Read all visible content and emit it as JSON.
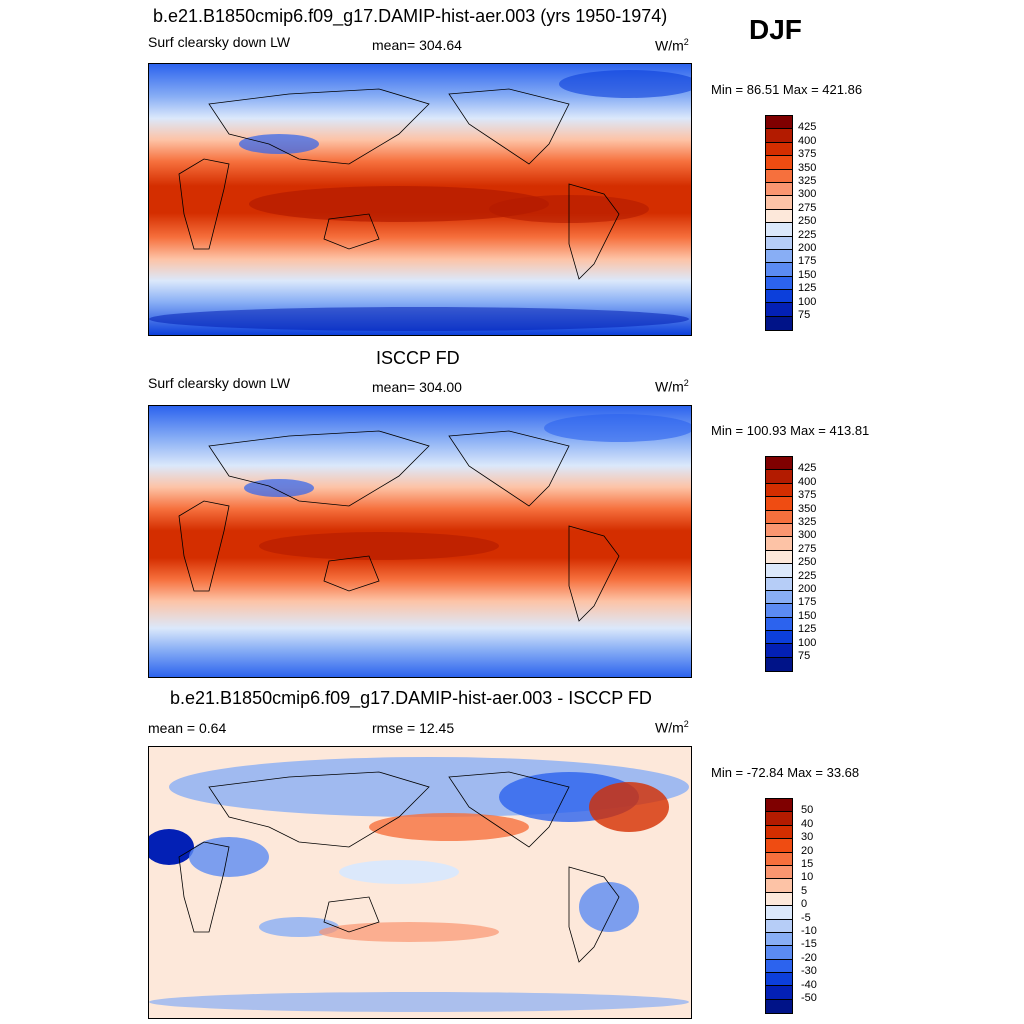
{
  "season": "DJF",
  "panels": [
    {
      "title": "b.e21.B1850cmip6.f09_g17.DAMIP-hist-aer.003 (yrs 1950-1974)",
      "left": "Surf clearsky down LW",
      "center": "mean= 304.64",
      "units": "W/m",
      "units_sup": "2",
      "minmax": "Min =  86.51 Max = 421.86",
      "colorbar": {
        "labels": [
          "425",
          "400",
          "375",
          "350",
          "325",
          "300",
          "275",
          "250",
          "225",
          "200",
          "175",
          "150",
          "125",
          "100",
          "75"
        ],
        "colors": [
          "#7f0000",
          "#b31b00",
          "#d42e00",
          "#ef4c12",
          "#f6703d",
          "#fa9670",
          "#fdc3a6",
          "#fde8da",
          "#dbe8fb",
          "#b6cdf7",
          "#88aef5",
          "#5b8bf3",
          "#2c63ee",
          "#0c3fdb",
          "#0320b5",
          "#001388"
        ]
      }
    },
    {
      "title": "ISCCP FD",
      "left": "Surf clearsky down LW",
      "center": "mean= 304.00",
      "units": "W/m",
      "units_sup": "2",
      "minmax": "Min = 100.93 Max = 413.81",
      "colorbar": {
        "labels": [
          "425",
          "400",
          "375",
          "350",
          "325",
          "300",
          "275",
          "250",
          "225",
          "200",
          "175",
          "150",
          "125",
          "100",
          "75"
        ],
        "colors": [
          "#7f0000",
          "#b31b00",
          "#d42e00",
          "#ef4c12",
          "#f6703d",
          "#fa9670",
          "#fdc3a6",
          "#fde8da",
          "#dbe8fb",
          "#b6cdf7",
          "#88aef5",
          "#5b8bf3",
          "#2c63ee",
          "#0c3fdb",
          "#0320b5",
          "#001388"
        ]
      }
    },
    {
      "title": "b.e21.B1850cmip6.f09_g17.DAMIP-hist-aer.003 - ISCCP FD",
      "left": "mean =   0.64",
      "center": "rmse =  12.45",
      "units": "W/m",
      "units_sup": "2",
      "minmax": "Min = -72.84 Max =  33.68",
      "colorbar": {
        "labels": [
          "50",
          "40",
          "30",
          "20",
          "15",
          "10",
          "5",
          "0",
          "-5",
          "-10",
          "-15",
          "-20",
          "-30",
          "-40",
          "-50"
        ],
        "colors": [
          "#7f0000",
          "#b31b00",
          "#d42e00",
          "#ef4c12",
          "#f6703d",
          "#fa9670",
          "#fdc3a6",
          "#fde8da",
          "#dbe8fb",
          "#b6cdf7",
          "#88aef5",
          "#5b8bf3",
          "#2c63ee",
          "#0c3fdb",
          "#0320b5",
          "#001388"
        ]
      }
    }
  ]
}
